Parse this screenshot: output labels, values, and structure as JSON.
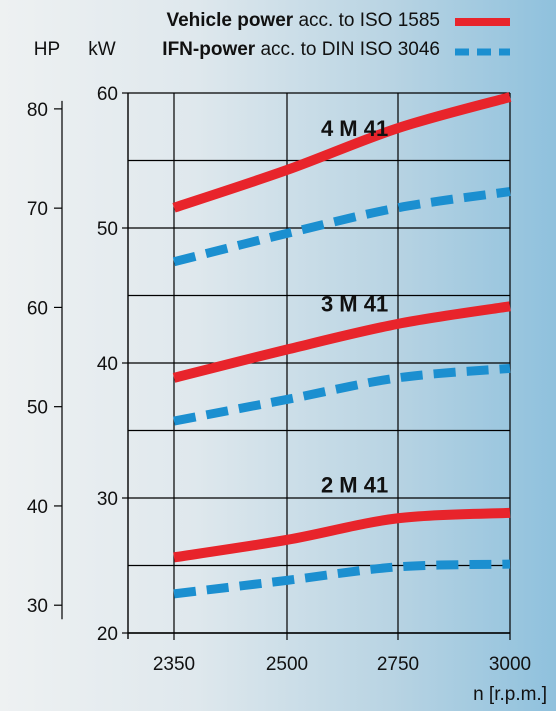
{
  "legend": [
    {
      "bold": "Vehicle power",
      "rest": " acc. to ISO 1585",
      "color": "#e8242b",
      "style": "solid"
    },
    {
      "bold": "IFN-power",
      "rest": " acc. to DIN ISO 3046",
      "color": "#1b8fd0",
      "style": "dashed"
    }
  ],
  "units": {
    "hp": "HP",
    "kw": "kW",
    "rpm": "n [r.p.m.]"
  },
  "chart_data": {
    "type": "line",
    "xlabel": "n [r.p.m.]",
    "ylabel": "kW",
    "ylabel_secondary": "HP",
    "x_ticks": [
      "2350",
      "2500",
      "2750",
      "3000"
    ],
    "x_tick_values": [
      2350,
      2500,
      2750,
      3000
    ],
    "ylim": [
      20,
      60
    ],
    "y_ticks": [
      "20",
      "30",
      "40",
      "50",
      "60"
    ],
    "y_tick_values": [
      20,
      30,
      40,
      50,
      60
    ],
    "y_secondary_ticks": [
      "30",
      "40",
      "50",
      "60",
      "70",
      "80"
    ],
    "y_secondary_tick_values": [
      30,
      40,
      50,
      60,
      70,
      80
    ],
    "y_secondary_unit_per_primary": 1.36,
    "gridlines": [
      20,
      25,
      30,
      35,
      40,
      45,
      50,
      55,
      60
    ],
    "x": [
      2350,
      2500,
      2750,
      3000
    ],
    "models": [
      {
        "label": "4 M 41",
        "label_x": 2650,
        "label_y": 56.8,
        "series": [
          {
            "name": "Vehicle power",
            "style": "solid",
            "values": [
              51.5,
              54.3,
              57.4,
              59.7
            ]
          },
          {
            "name": "IFN-power",
            "style": "dashed",
            "values": [
              47.5,
              49.6,
              51.5,
              52.7
            ]
          }
        ]
      },
      {
        "label": "3 M 41",
        "label_x": 2650,
        "label_y": 43.8,
        "series": [
          {
            "name": "Vehicle power",
            "style": "solid",
            "values": [
              38.9,
              41.0,
              42.9,
              44.2
            ]
          },
          {
            "name": "IFN-power",
            "style": "dashed",
            "values": [
              35.7,
              37.3,
              38.9,
              39.6
            ]
          }
        ]
      },
      {
        "label": "2 M 41",
        "label_x": 2650,
        "label_y": 30.4,
        "series": [
          {
            "name": "Vehicle power",
            "style": "solid",
            "values": [
              25.6,
              26.9,
              28.5,
              28.9
            ]
          },
          {
            "name": "IFN-power",
            "style": "dashed",
            "values": [
              22.9,
              23.9,
              24.9,
              25.1
            ]
          }
        ]
      }
    ]
  }
}
